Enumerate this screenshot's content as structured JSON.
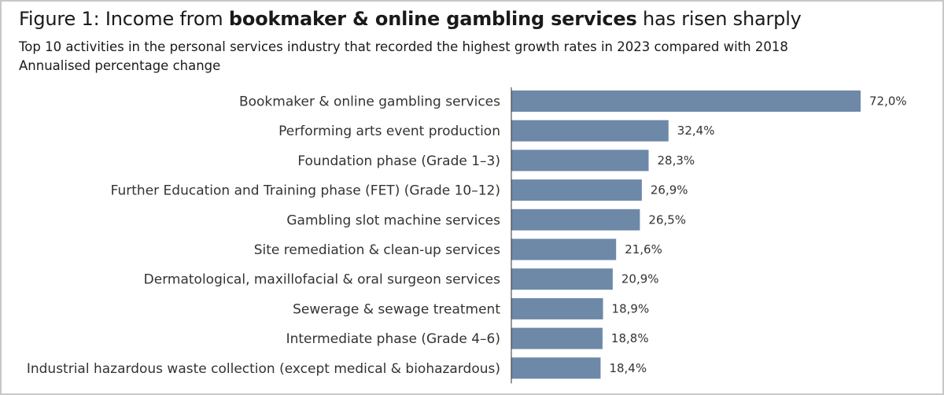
{
  "title": {
    "prefix": "Figure 1: Income from ",
    "bold": "bookmaker & online gambling services",
    "suffix": " has risen sharply"
  },
  "subtitle": "Top 10 activities in the personal services industry that recorded the highest growth rates in 2023 compared with 2018",
  "unit_label": "Annualised percentage change",
  "colors": {
    "bar": "#6e88a8",
    "axis": "#333333"
  },
  "chart_data": {
    "type": "bar",
    "orientation": "horizontal",
    "categories": [
      "Bookmaker & online gambling services",
      "Performing arts event production",
      "Foundation phase (Grade 1–3)",
      "Further Education and Training phase (FET) (Grade 10–12)",
      "Gambling slot machine services",
      "Site remediation & clean-up services",
      "Dermatological, maxillofacial & oral surgeon services",
      "Sewerage & sewage treatment",
      "Intermediate phase (Grade 4–6)",
      "Industrial hazardous waste collection (except medical & biohazardous)"
    ],
    "values": [
      72.0,
      32.4,
      28.3,
      26.9,
      26.5,
      21.6,
      20.9,
      18.9,
      18.8,
      18.4
    ],
    "data_labels": [
      "72,0%",
      "32,4%",
      "28,3%",
      "26,9%",
      "26,5%",
      "21,6%",
      "20,9%",
      "18,9%",
      "18,8%",
      "18,4%"
    ],
    "xlim": [
      0,
      72
    ],
    "grid": false,
    "legend": "none"
  }
}
